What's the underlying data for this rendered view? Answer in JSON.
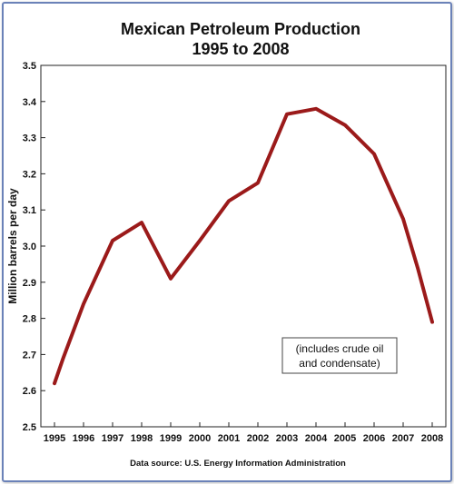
{
  "chart_data": {
    "type": "line",
    "title_line1": "Mexican Petroleum Production",
    "title_line2": "1995 to 2008",
    "ylabel": "Million barrels per day",
    "xlabel": "",
    "ylim": [
      2.5,
      3.5
    ],
    "yticks": [
      2.5,
      2.6,
      2.7,
      2.8,
      2.9,
      3.0,
      3.1,
      3.2,
      3.3,
      3.4,
      3.5
    ],
    "ytick_labels": [
      "2.5",
      "2.6",
      "2.7",
      "2.8",
      "2.9",
      "3.0",
      "3.1",
      "3.2",
      "3.3",
      "3.4",
      "3.5"
    ],
    "categories": [
      "1995",
      "1996",
      "1997",
      "1998",
      "1999",
      "2000",
      "2001",
      "2002",
      "2003",
      "2004",
      "2005",
      "2006",
      "2007",
      "2008"
    ],
    "series": [
      {
        "color": "#9b1a1a",
        "points": [
          {
            "x": 1995.0,
            "y": 2.62
          },
          {
            "x": 1995.3,
            "y": 2.69
          },
          {
            "x": 1996.0,
            "y": 2.84
          },
          {
            "x": 1997.0,
            "y": 3.015
          },
          {
            "x": 1998.0,
            "y": 3.065
          },
          {
            "x": 1999.0,
            "y": 2.91
          },
          {
            "x": 2000.0,
            "y": 3.015
          },
          {
            "x": 2001.0,
            "y": 3.125
          },
          {
            "x": 2002.0,
            "y": 3.175
          },
          {
            "x": 2003.0,
            "y": 3.365
          },
          {
            "x": 2004.0,
            "y": 3.38
          },
          {
            "x": 2005.0,
            "y": 3.335
          },
          {
            "x": 2006.0,
            "y": 3.255
          },
          {
            "x": 2007.0,
            "y": 3.075
          },
          {
            "x": 2007.5,
            "y": 2.94
          },
          {
            "x": 2008.0,
            "y": 2.79
          }
        ]
      }
    ],
    "grid": false,
    "annotation": {
      "line1": "(includes crude oil",
      "line2": "and condensate)"
    },
    "source": "Data source: U.S. Energy Information Administration"
  }
}
